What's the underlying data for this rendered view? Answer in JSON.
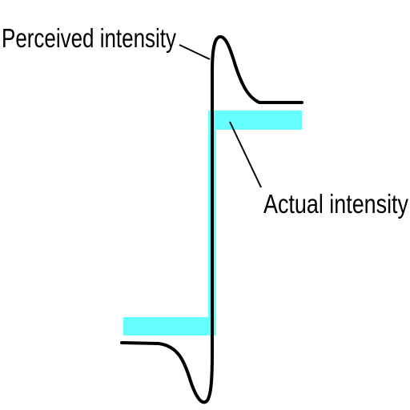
{
  "labels": {
    "perceived": "Perceived intensity",
    "actual": "Actual intensity"
  },
  "colors": {
    "actual_intensity": "#66ffff",
    "perceived_intensity": "#000000",
    "background": "#ffffff"
  }
}
